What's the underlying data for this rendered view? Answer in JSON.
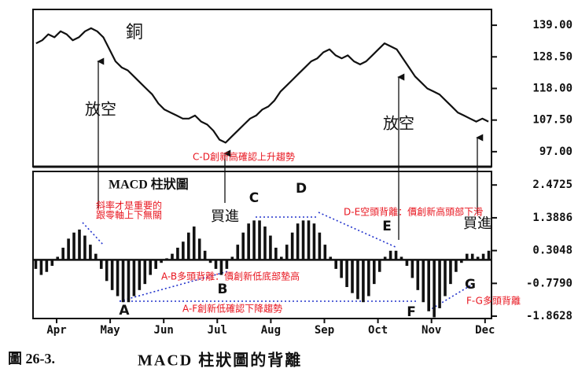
{
  "chart_data": [
    {
      "type": "line",
      "title": "銅",
      "color": "#111111",
      "values": [
        133,
        134,
        136,
        135,
        137,
        136,
        134,
        135,
        137,
        138,
        137,
        135,
        131,
        127,
        125,
        124,
        122,
        120,
        118,
        116,
        113,
        111,
        110,
        109,
        108,
        108,
        109,
        107,
        106,
        104,
        101,
        100,
        102,
        104,
        106,
        108,
        109,
        111,
        112,
        114,
        117,
        119,
        121,
        123,
        125,
        127,
        128,
        130,
        131,
        129,
        128,
        129,
        127,
        126,
        127,
        129,
        131,
        133,
        132,
        131,
        128,
        125,
        122,
        120,
        118,
        117,
        116,
        114,
        112,
        110,
        109,
        108,
        107,
        108,
        107
      ],
      "ylim": [
        92,
        144.25
      ],
      "yticks": [
        {
          "value": 139,
          "label": "139.00"
        },
        {
          "value": 128.5,
          "label": "128.50"
        },
        {
          "value": 118,
          "label": "118.00"
        },
        {
          "value": 107.5,
          "label": "107.50"
        },
        {
          "value": 97,
          "label": "97.00"
        }
      ],
      "annotations": [
        "放空",
        "放空",
        "C-D創新高確認上升趨勢"
      ]
    },
    {
      "type": "bar",
      "title": "MACD 柱狀圖",
      "color": "#111111",
      "values": [
        -0.3,
        -0.5,
        -0.4,
        -0.2,
        0.1,
        0.4,
        0.7,
        0.9,
        1.0,
        0.8,
        0.5,
        0.2,
        -0.3,
        -0.7,
        -1.0,
        -1.2,
        -1.4,
        -1.4,
        -1.2,
        -1.0,
        -0.8,
        -0.5,
        -0.3,
        -0.1,
        0.05,
        0.2,
        0.4,
        0.6,
        0.9,
        1.1,
        0.7,
        0.3,
        -0.1,
        -0.3,
        -0.5,
        -0.3,
        0.1,
        0.5,
        0.9,
        1.2,
        1.3,
        1.3,
        1.1,
        0.8,
        0.4,
        0.1,
        0.5,
        0.9,
        1.2,
        1.3,
        1.3,
        1.2,
        0.9,
        0.5,
        0.1,
        -0.3,
        -0.6,
        -0.9,
        -1.1,
        -1.3,
        -1.4,
        -1.2,
        -0.8,
        -0.4,
        0.1,
        0.3,
        0.3,
        0.1,
        -0.2,
        -0.6,
        -1.0,
        -1.4,
        -1.7,
        -1.9,
        -1.6,
        -1.2,
        -0.8,
        -0.4,
        -0.1,
        0.2,
        0.2,
        0.1,
        0.2,
        0.3
      ],
      "ylim": [
        -1.94,
        2.92
      ],
      "yticks": [
        2.4725,
        1.3886,
        0.3048,
        {
          "value": -0.779,
          "label": "-0.7790"
        },
        -1.8628
      ],
      "months": [
        "Apr",
        "May",
        "Jun",
        "Jul",
        "Aug",
        "Sep",
        "Oct",
        "Nov",
        "Dec"
      ],
      "annotations": [
        "買進",
        "買進",
        "A",
        "B",
        "C",
        "D",
        "E",
        "F",
        "G",
        "斜率才是重要的",
        "跟零軸上下無關",
        "D-E空頭背離：價創新高頭部下滑",
        "A-B多頭背離：價創新低底部墊高",
        "A-F創新低確認下降趨勢",
        "F-G多頭背離"
      ]
    }
  ],
  "caption": {
    "number": "圖 26-3.",
    "title": "MACD 柱狀圖的背離"
  }
}
